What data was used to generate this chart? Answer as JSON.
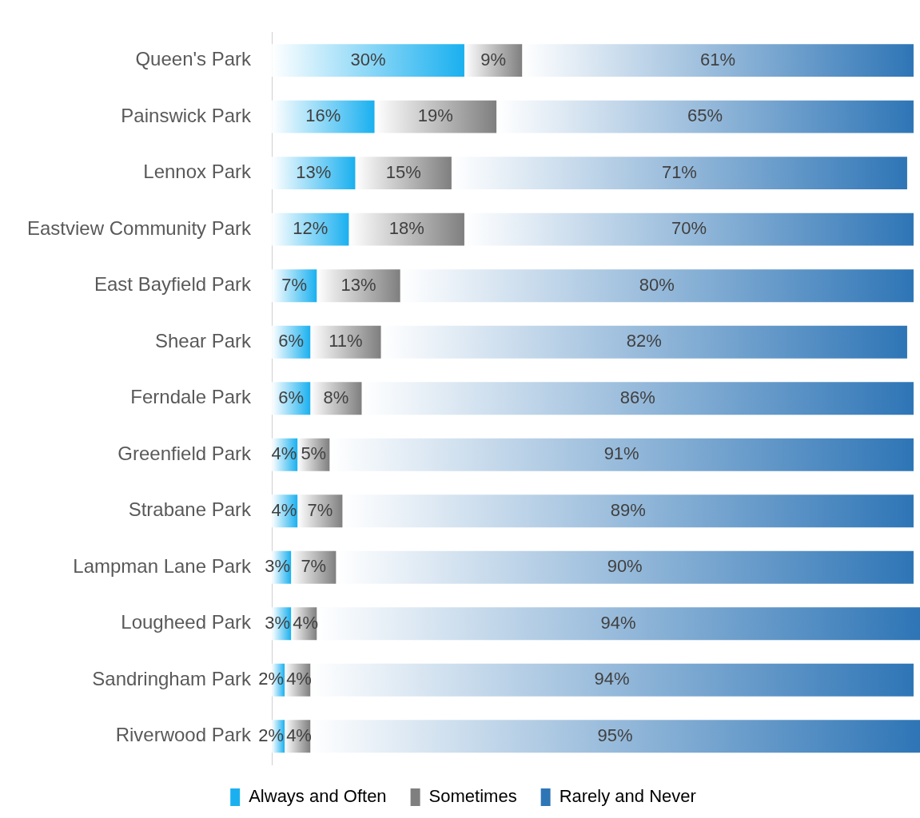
{
  "chart_data": {
    "type": "bar",
    "orientation": "horizontal",
    "stacked": true,
    "legend": "bottom",
    "grid": false,
    "categories": [
      "Queen's Park",
      "Painswick Park",
      "Lennox Park",
      "Eastview Community Park",
      "East Bayfield Park",
      "Shear Park",
      "Ferndale Park",
      "Greenfield Park",
      "Strabane Park",
      "Lampman Lane Park",
      "Lougheed Park",
      "Sandringham Park",
      "Riverwood Park"
    ],
    "series": [
      {
        "name": "Always and Often",
        "color": "#1ab0ef",
        "values": [
          30,
          16,
          13,
          12,
          7,
          6,
          6,
          4,
          4,
          3,
          3,
          2,
          2
        ],
        "value_labels": [
          "30%",
          "16%",
          "13%",
          "12%",
          "7%",
          "6%",
          "6%",
          "4%",
          "4%",
          "3%",
          "3%",
          "2%",
          "2%"
        ]
      },
      {
        "name": "Sometimes",
        "color": "#7f7f7f",
        "values": [
          9,
          19,
          15,
          18,
          13,
          11,
          8,
          5,
          7,
          7,
          4,
          4,
          4
        ],
        "value_labels": [
          "9%",
          "19%",
          "15%",
          "18%",
          "13%",
          "11%",
          "8%",
          "5%",
          "7%",
          "7%",
          "4%",
          "4%",
          "4%"
        ]
      },
      {
        "name": "Rarely and Never",
        "color": "#2e75b6",
        "values": [
          61,
          65,
          71,
          70,
          80,
          82,
          86,
          91,
          89,
          90,
          94,
          94,
          95
        ],
        "value_labels": [
          "61%",
          "65%",
          "71%",
          "70%",
          "80%",
          "82%",
          "86%",
          "91%",
          "89%",
          "90%",
          "94%",
          "94%",
          "95%"
        ]
      }
    ]
  }
}
